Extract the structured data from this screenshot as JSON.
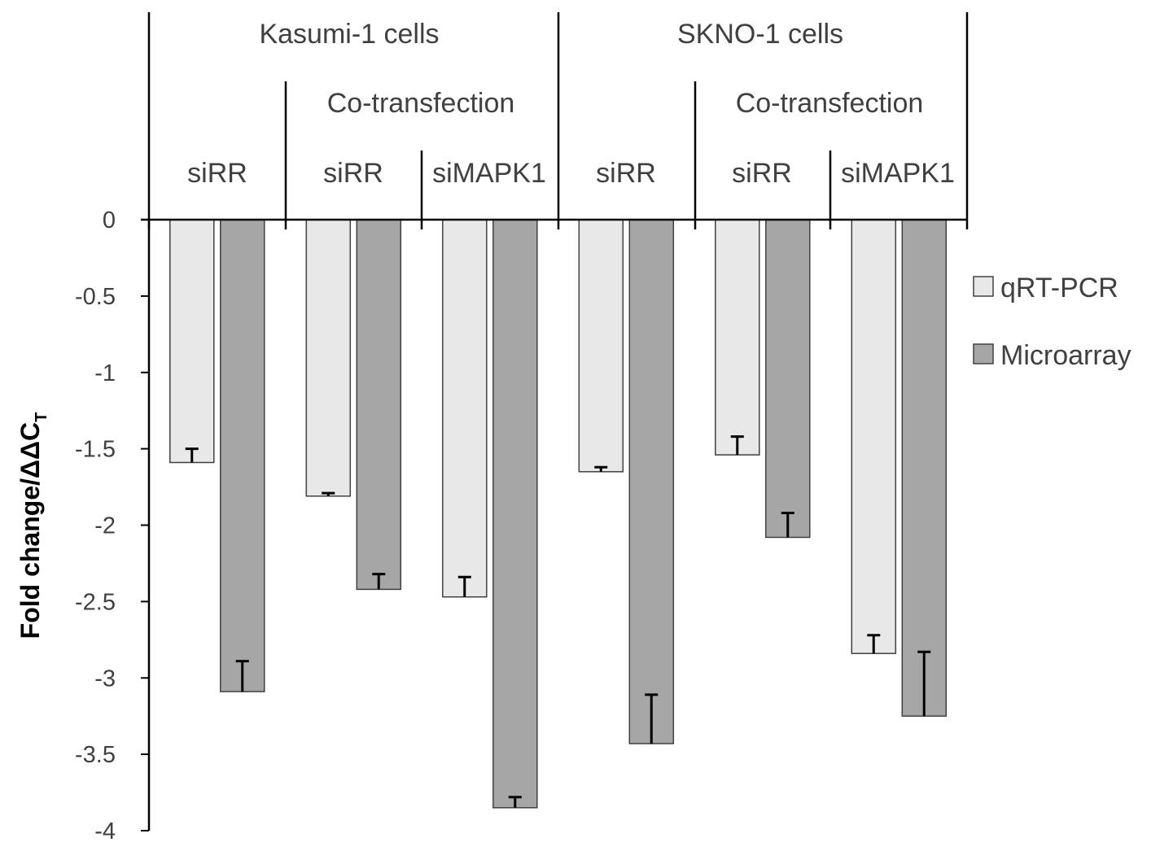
{
  "colors": {
    "qrtpcr_fill": "#e8e8e8",
    "microarray_fill": "#a6a6a6",
    "bar_stroke": "#404040",
    "axis": "#000000",
    "error_bar": "#000000"
  },
  "header": {
    "cell_lines": [
      "Kasumi-1 cells",
      "SKNO-1 cells"
    ],
    "co_transfection_label": "Co-transfection",
    "condition_labels": [
      "siRR",
      "siRR",
      "siMAPK1",
      "siRR",
      "siRR",
      "siMAPK1"
    ]
  },
  "chart_data": {
    "type": "bar",
    "orientation": "vertical",
    "ylabel_main": "Fold change/ΔΔC",
    "ylabel_sub": "T",
    "ylim": [
      -4,
      0
    ],
    "yticks": [
      0,
      -0.5,
      -1,
      -1.5,
      -2,
      -2.5,
      -3,
      -3.5,
      -4
    ],
    "ytick_labels": [
      "0",
      "-0.5",
      "-1",
      "-1.5",
      "-2",
      "-2.5",
      "-3",
      "-3.5",
      "-4"
    ],
    "grid": false,
    "legend_position": "right",
    "categories": [
      "siRR",
      "siRR",
      "siMAPK1",
      "siRR",
      "siRR",
      "siMAPK1"
    ],
    "category_groups": [
      {
        "cell_line": "Kasumi-1 cells",
        "group": "",
        "condition": "siRR"
      },
      {
        "cell_line": "Kasumi-1 cells",
        "group": "Co-transfection",
        "condition": "siRR"
      },
      {
        "cell_line": "Kasumi-1 cells",
        "group": "Co-transfection",
        "condition": "siMAPK1"
      },
      {
        "cell_line": "SKNO-1 cells",
        "group": "",
        "condition": "siRR"
      },
      {
        "cell_line": "SKNO-1 cells",
        "group": "Co-transfection",
        "condition": "siRR"
      },
      {
        "cell_line": "SKNO-1 cells",
        "group": "Co-transfection",
        "condition": "siMAPK1"
      }
    ],
    "series": [
      {
        "name": "qRT-PCR",
        "values": [
          -1.59,
          -1.81,
          -2.47,
          -1.65,
          -1.54,
          -2.84
        ],
        "errors": [
          0.09,
          0.02,
          0.13,
          0.03,
          0.12,
          0.12
        ]
      },
      {
        "name": "Microarray",
        "values": [
          -3.09,
          -2.42,
          -3.85,
          -3.43,
          -2.08,
          -3.25
        ],
        "errors": [
          0.2,
          0.1,
          0.07,
          0.32,
          0.16,
          0.42
        ]
      }
    ]
  }
}
